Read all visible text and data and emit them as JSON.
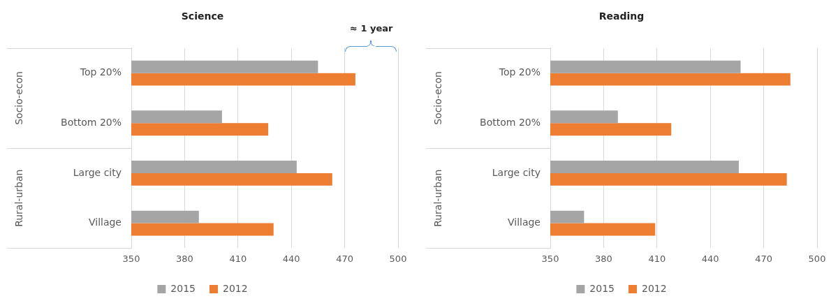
{
  "chart_data": [
    {
      "type": "bar",
      "orientation": "horizontal",
      "title": "Science",
      "categories": [
        "Top 20%",
        "Bottom 20%",
        "Large city",
        "Village"
      ],
      "series": [
        {
          "name": "2015",
          "color": "#a5a5a5",
          "values": [
            455,
            401,
            443,
            388
          ]
        },
        {
          "name": "2012",
          "color": "#ed7d31",
          "values": [
            476,
            427,
            463,
            430
          ]
        }
      ],
      "xlim": [
        350,
        500
      ],
      "xticks": [
        350,
        380,
        410,
        440,
        470,
        500
      ],
      "grid": "x",
      "legend": "bottom",
      "annotations": [
        "Socio-econ",
        "Rural-urban",
        "≈ 1 year"
      ]
    },
    {
      "type": "bar",
      "orientation": "horizontal",
      "title": "Reading",
      "categories": [
        "Top 20%",
        "Bottom 20%",
        "Large city",
        "Village"
      ],
      "series": [
        {
          "name": "2015",
          "color": "#a5a5a5",
          "values": [
            457,
            388,
            456,
            369
          ]
        },
        {
          "name": "2012",
          "color": "#ed7d31",
          "values": [
            485,
            418,
            483,
            409
          ]
        }
      ],
      "xlim": [
        350,
        500
      ],
      "xticks": [
        350,
        380,
        410,
        440,
        470,
        500
      ],
      "grid": "x",
      "legend": "bottom",
      "annotations": [
        "Socio-econ",
        "Rural-urban"
      ]
    }
  ]
}
